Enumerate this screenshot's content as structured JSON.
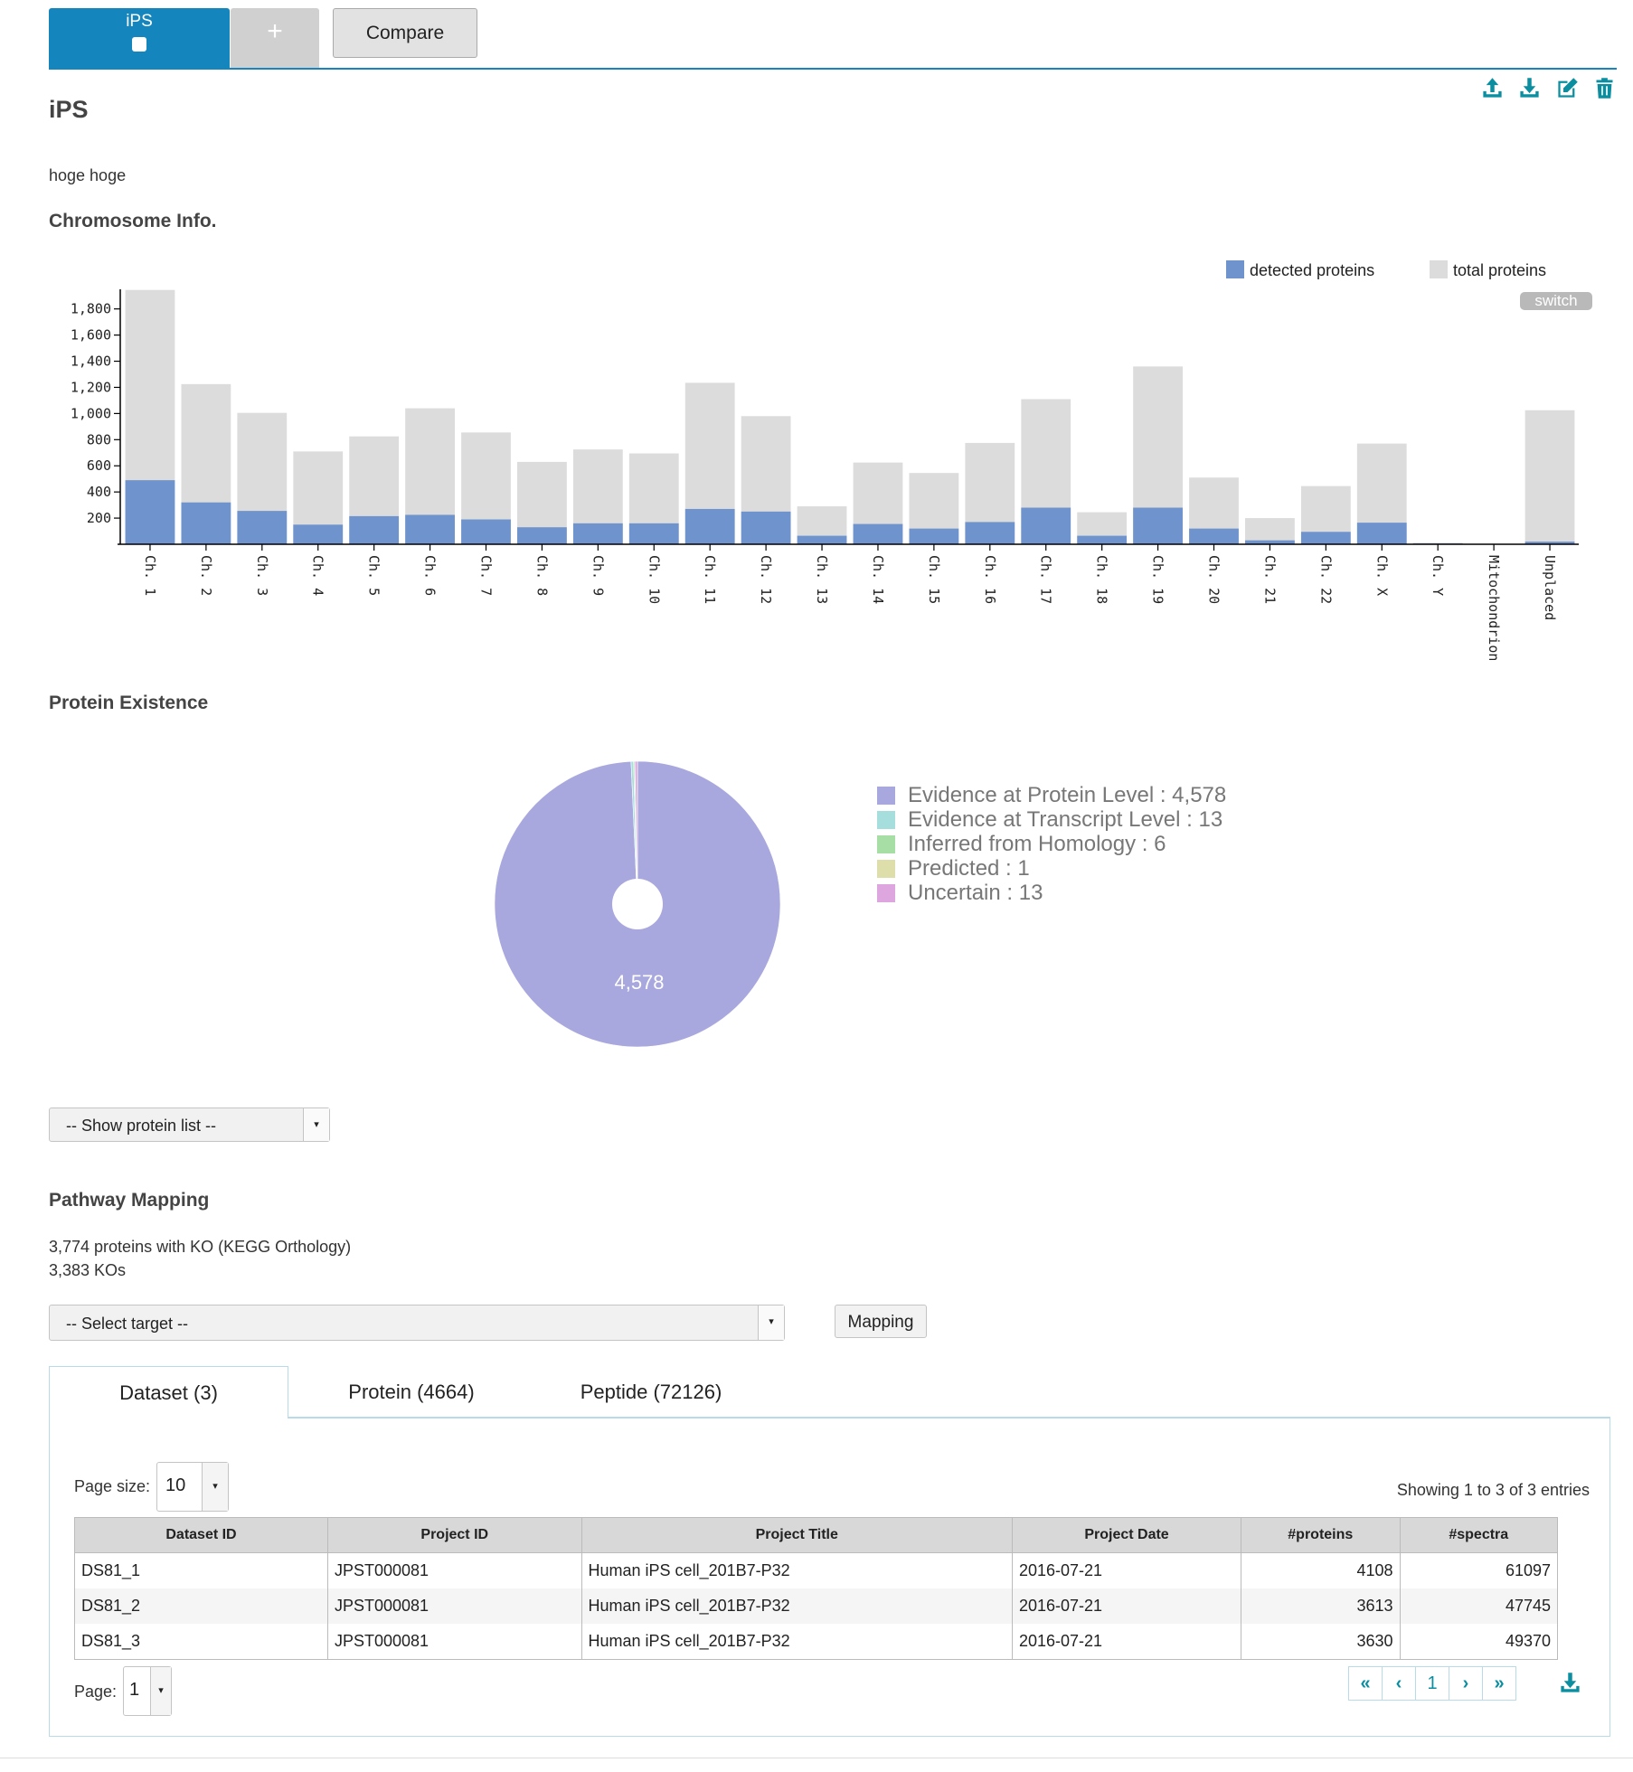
{
  "tabs": {
    "active": "iPS",
    "add": "+",
    "compare": "Compare"
  },
  "toolbar_icons": [
    "upload-icon",
    "download-icon",
    "edit-icon",
    "trash-icon"
  ],
  "dataset": {
    "title": "iPS",
    "description": "hoge hoge"
  },
  "chromosome": {
    "heading": "Chromosome Info.",
    "switch_label": "switch",
    "colors": {
      "detected": "#6f93cc",
      "total": "#dcdcdc"
    }
  },
  "chart_data": {
    "type": "bar",
    "title": "Chromosome Info.",
    "categories": [
      "Ch. 1",
      "Ch. 2",
      "Ch. 3",
      "Ch. 4",
      "Ch. 5",
      "Ch. 6",
      "Ch. 7",
      "Ch. 8",
      "Ch. 9",
      "Ch. 10",
      "Ch. 11",
      "Ch. 12",
      "Ch. 13",
      "Ch. 14",
      "Ch. 15",
      "Ch. 16",
      "Ch. 17",
      "Ch. 18",
      "Ch. 19",
      "Ch. 20",
      "Ch. 21",
      "Ch. 22",
      "Ch. X",
      "Ch. Y",
      "Mitochondrion",
      "Unplaced"
    ],
    "series": [
      {
        "name": "detected proteins",
        "values": [
          490,
          320,
          255,
          150,
          215,
          225,
          190,
          130,
          160,
          160,
          270,
          250,
          65,
          155,
          120,
          170,
          280,
          65,
          280,
          120,
          30,
          95,
          165,
          5,
          0,
          20
        ]
      },
      {
        "name": "total proteins",
        "values": [
          1945,
          1225,
          1005,
          710,
          825,
          1040,
          855,
          630,
          725,
          695,
          1235,
          980,
          290,
          625,
          545,
          775,
          1110,
          245,
          1360,
          510,
          200,
          445,
          770,
          12,
          0,
          1025
        ]
      }
    ],
    "ylim": [
      0,
      1950
    ],
    "yticks": [
      200,
      400,
      600,
      800,
      1000,
      1200,
      1400,
      1600,
      1800
    ],
    "ytick_labels": [
      "200",
      "400",
      "600",
      "800",
      "1,000",
      "1,200",
      "1,400",
      "1,600",
      "1,800"
    ],
    "legend_position": "top-right",
    "xlabel": "",
    "ylabel": ""
  },
  "protein_existence": {
    "heading": "Protein Existence",
    "pie_label": "4,578",
    "legend": [
      {
        "label": "Evidence at Protein Level : 4,578",
        "value": 4578,
        "color": "#a8a8de"
      },
      {
        "label": "Evidence at Transcript Level : 13",
        "value": 13,
        "color": "#a6dede"
      },
      {
        "label": "Inferred from Homology : 6",
        "value": 6,
        "color": "#a6dea6"
      },
      {
        "label": "Predicted : 1",
        "value": 1,
        "color": "#dedeaa"
      },
      {
        "label": "Uncertain : 13",
        "value": 13,
        "color": "#dea6de"
      }
    ]
  },
  "protein_list_select": "-- Show protein list --",
  "pathway": {
    "heading": "Pathway Mapping",
    "line1": "3,774 proteins with KO (KEGG Orthology)",
    "line2": "3,383 KOs",
    "select_target": "-- Select target --",
    "mapping_button": "Mapping"
  },
  "result_tabs": [
    "Dataset (3)",
    "Protein (4664)",
    "Peptide (72126)"
  ],
  "table": {
    "page_size_label": "Page size:",
    "page_size": "10",
    "showing": "Showing 1 to 3 of 3 entries",
    "columns": [
      "Dataset ID",
      "Project ID",
      "Project Title",
      "Project Date",
      "#proteins",
      "#spectra"
    ],
    "rows": [
      [
        "DS81_1",
        "JPST000081",
        "Human iPS cell_201B7-P32",
        "2016-07-21",
        "4108",
        "61097"
      ],
      [
        "DS81_2",
        "JPST000081",
        "Human iPS cell_201B7-P32",
        "2016-07-21",
        "3613",
        "47745"
      ],
      [
        "DS81_3",
        "JPST000081",
        "Human iPS cell_201B7-P32",
        "2016-07-21",
        "3630",
        "49370"
      ]
    ],
    "page_label": "Page:",
    "page": "1",
    "pager": {
      "first": "«",
      "prev": "‹",
      "current": "1",
      "next": "›",
      "last": "»"
    }
  }
}
